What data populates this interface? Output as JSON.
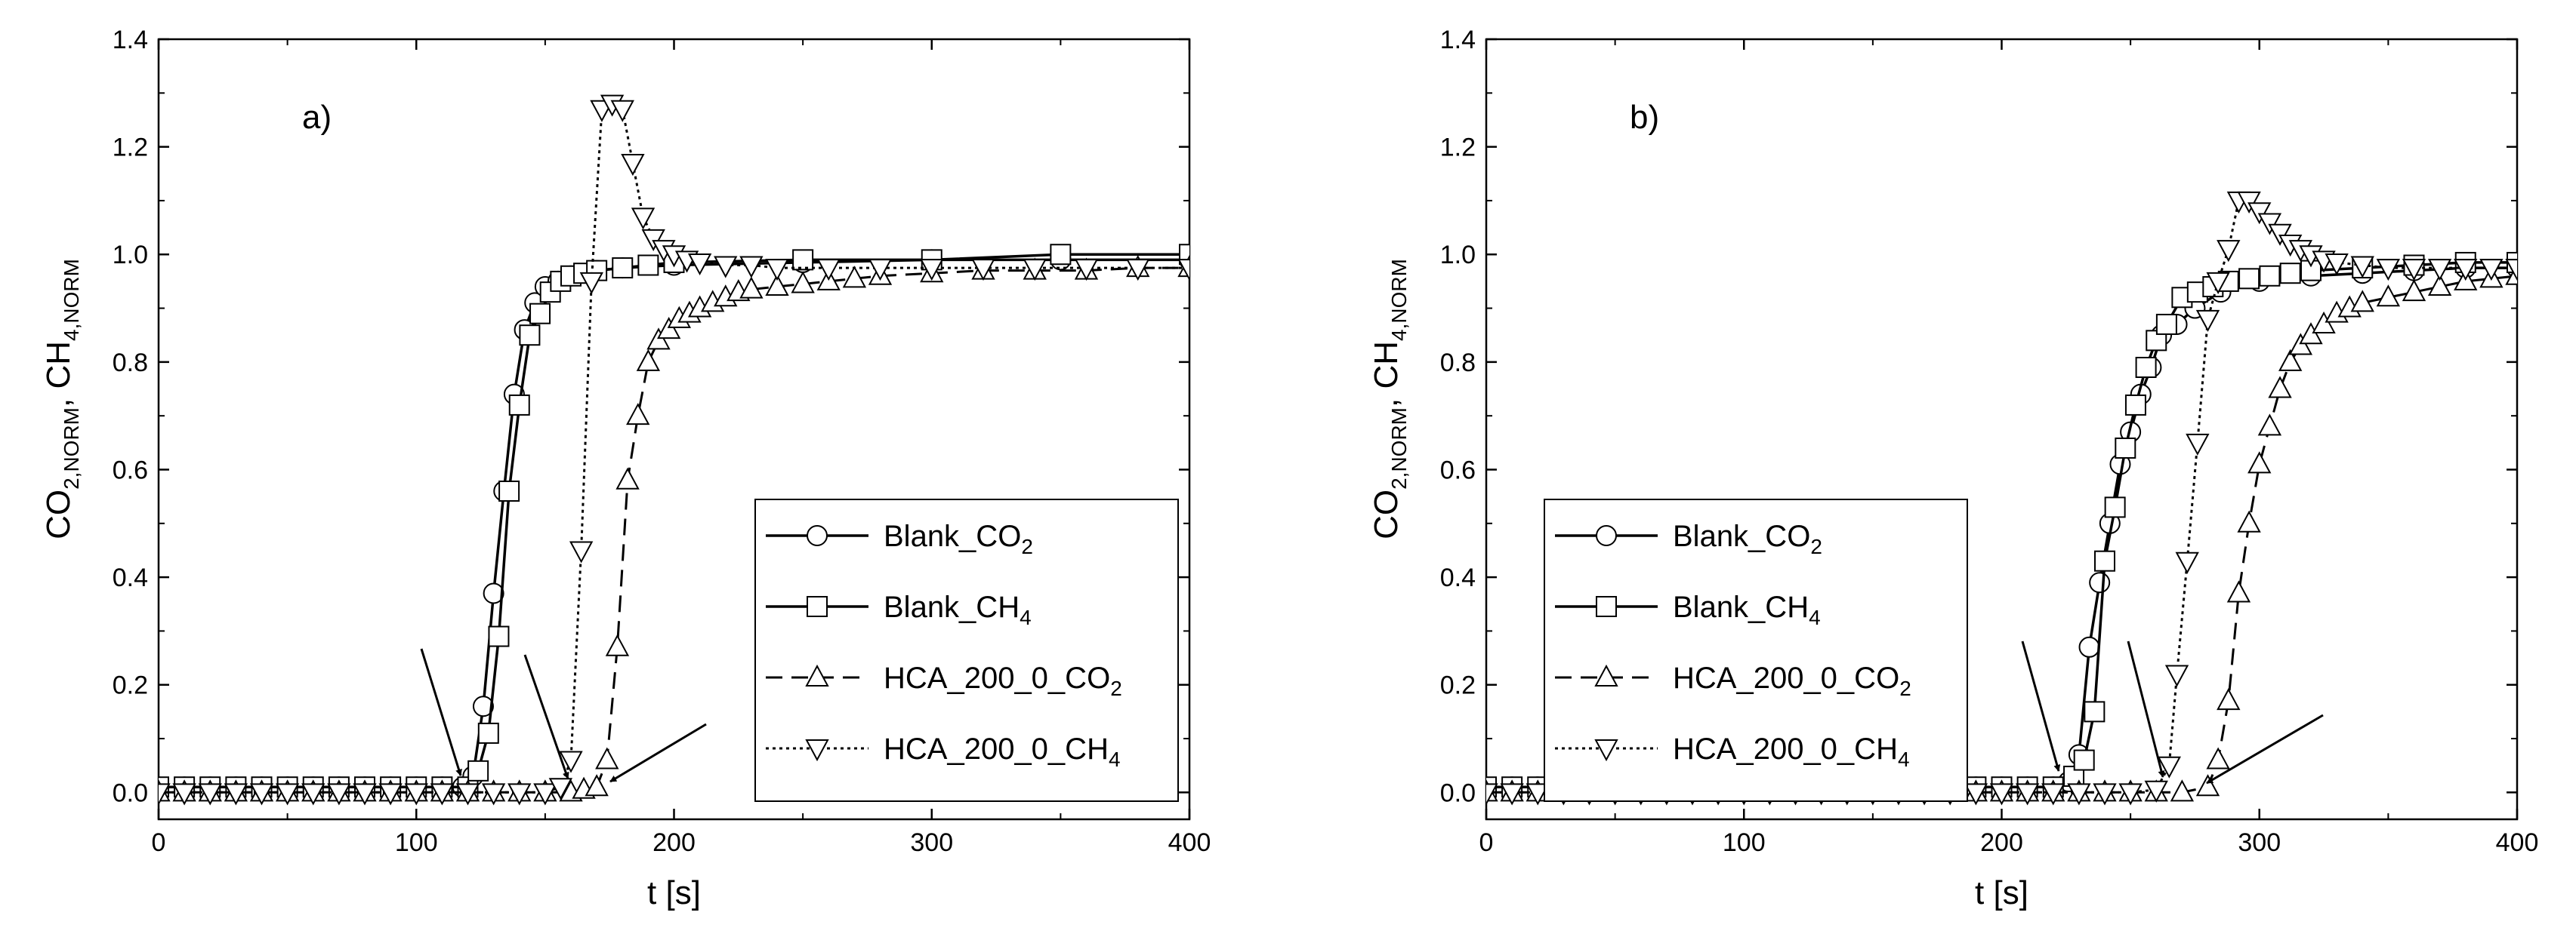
{
  "chart_data": [
    {
      "type": "line",
      "panel_label": "a)",
      "xlabel": "t [s]",
      "ylabel": "CO2,NORM, CH4,NORM",
      "ylabel_parts": [
        "CO",
        "2,NORM",
        ", CH",
        "4,NORM"
      ],
      "xlim": [
        0,
        400
      ],
      "ylim": [
        -0.05,
        1.4
      ],
      "xticks": [
        "0",
        "100",
        "200",
        "300",
        "400"
      ],
      "yticks": [
        "0.0",
        "0.2",
        "0.4",
        "0.6",
        "0.8",
        "1.0",
        "1.2",
        "1.4"
      ],
      "grid": false,
      "legend_position": "bottom-right",
      "series": [
        {
          "name": "Blank_CO2",
          "name_main": "Blank_CO",
          "name_sub": "2",
          "marker": "circle",
          "line": "solid",
          "x": [
            0,
            10,
            20,
            30,
            40,
            50,
            60,
            70,
            80,
            90,
            100,
            110,
            118,
            122,
            126,
            130,
            134,
            138,
            142,
            146,
            150,
            155,
            160,
            170,
            180,
            200,
            250,
            300,
            350,
            400
          ],
          "y": [
            0.01,
            0.01,
            0.01,
            0.01,
            0.01,
            0.01,
            0.01,
            0.01,
            0.01,
            0.01,
            0.01,
            0.01,
            0.01,
            0.03,
            0.16,
            0.37,
            0.56,
            0.74,
            0.86,
            0.91,
            0.94,
            0.95,
            0.96,
            0.97,
            0.975,
            0.98,
            0.985,
            0.99,
            0.99,
            0.99
          ]
        },
        {
          "name": "Blank_CH4",
          "name_main": "Blank_CH",
          "name_sub": "4",
          "marker": "square",
          "line": "solid",
          "x": [
            0,
            10,
            20,
            30,
            40,
            50,
            60,
            70,
            80,
            90,
            100,
            110,
            120,
            124,
            128,
            132,
            136,
            140,
            144,
            148,
            152,
            156,
            160,
            165,
            170,
            180,
            190,
            200,
            250,
            300,
            350,
            400
          ],
          "y": [
            0.01,
            0.01,
            0.01,
            0.01,
            0.01,
            0.01,
            0.01,
            0.01,
            0.01,
            0.01,
            0.01,
            0.01,
            0.01,
            0.04,
            0.11,
            0.29,
            0.56,
            0.72,
            0.85,
            0.89,
            0.93,
            0.95,
            0.96,
            0.965,
            0.97,
            0.975,
            0.98,
            0.985,
            0.99,
            0.99,
            1.0,
            1.0
          ]
        },
        {
          "name": "HCA_200_0_CO2",
          "name_main": "HCA_200_0_CO",
          "name_sub": "2",
          "marker": "triangle-up",
          "line": "dashed",
          "x": [
            0,
            10,
            20,
            30,
            40,
            50,
            60,
            70,
            80,
            90,
            100,
            110,
            120,
            130,
            140,
            150,
            160,
            165,
            170,
            174,
            178,
            182,
            186,
            190,
            194,
            198,
            202,
            206,
            210,
            215,
            220,
            225,
            230,
            240,
            250,
            260,
            270,
            280,
            300,
            320,
            340,
            360,
            380,
            400
          ],
          "y": [
            0,
            0,
            0,
            0,
            0,
            0,
            0,
            0,
            0,
            0,
            0,
            0,
            0,
            0,
            0,
            0,
            0,
            0.005,
            0.01,
            0.06,
            0.27,
            0.58,
            0.7,
            0.8,
            0.84,
            0.86,
            0.88,
            0.89,
            0.9,
            0.91,
            0.92,
            0.93,
            0.935,
            0.94,
            0.945,
            0.95,
            0.955,
            0.96,
            0.965,
            0.97,
            0.97,
            0.97,
            0.975,
            0.975
          ]
        },
        {
          "name": "HCA_200_0_CH4",
          "name_main": "HCA_200_0_CH",
          "name_sub": "4",
          "marker": "triangle-down",
          "line": "dotted",
          "x": [
            0,
            10,
            20,
            30,
            40,
            50,
            60,
            70,
            80,
            90,
            100,
            110,
            120,
            130,
            140,
            150,
            156,
            160,
            164,
            168,
            172,
            176,
            180,
            184,
            188,
            192,
            196,
            200,
            205,
            210,
            220,
            230,
            240,
            260,
            280,
            300,
            320,
            340,
            360,
            380,
            400
          ],
          "y": [
            0,
            0,
            0,
            0,
            0,
            0,
            0,
            0,
            0,
            0,
            0,
            0,
            0,
            0,
            0,
            0,
            0.01,
            0.06,
            0.45,
            0.95,
            1.27,
            1.28,
            1.27,
            1.17,
            1.07,
            1.03,
            1.01,
            1.0,
            0.99,
            0.985,
            0.98,
            0.98,
            0.975,
            0.975,
            0.975,
            0.975,
            0.975,
            0.975,
            0.975,
            0.975,
            0.975
          ]
        }
      ],
      "annotations": "three arrows pointing at curve onsets"
    },
    {
      "type": "line",
      "panel_label": "b)",
      "xlabel": "t [s]",
      "ylabel": "CO2,NORM, CH4,NORM",
      "ylabel_parts": [
        "CO",
        "2,NORM",
        ", CH",
        "4,NORM"
      ],
      "xlim": [
        0,
        400
      ],
      "ylim": [
        -0.05,
        1.4
      ],
      "xticks": [
        "0",
        "100",
        "200",
        "300",
        "400"
      ],
      "yticks": [
        "0.0",
        "0.2",
        "0.4",
        "0.6",
        "0.8",
        "1.0",
        "1.2",
        "1.4"
      ],
      "grid": false,
      "legend_position": "bottom-left",
      "series": [
        {
          "name": "Blank_CO2",
          "name_main": "Blank_CO",
          "name_sub": "2",
          "marker": "circle",
          "line": "solid",
          "x": [
            0,
            10,
            20,
            30,
            40,
            50,
            60,
            70,
            80,
            90,
            100,
            110,
            120,
            130,
            140,
            150,
            160,
            170,
            180,
            190,
            200,
            210,
            220,
            226,
            230,
            234,
            238,
            242,
            246,
            250,
            254,
            258,
            262,
            268,
            275,
            285,
            300,
            320,
            340,
            360,
            380,
            400
          ],
          "y": [
            0.01,
            0.01,
            0.01,
            0.01,
            0.01,
            0.01,
            0.01,
            0.01,
            0.01,
            0.01,
            0.01,
            0.01,
            0.01,
            0.01,
            0.01,
            0.01,
            0.01,
            0.01,
            0.01,
            0.01,
            0.01,
            0.01,
            0.01,
            0.02,
            0.07,
            0.27,
            0.39,
            0.5,
            0.61,
            0.67,
            0.74,
            0.79,
            0.85,
            0.87,
            0.9,
            0.93,
            0.95,
            0.96,
            0.965,
            0.97,
            0.975,
            0.975
          ]
        },
        {
          "name": "Blank_CH4",
          "name_main": "Blank_CH",
          "name_sub": "4",
          "marker": "square",
          "line": "solid",
          "x": [
            0,
            10,
            20,
            30,
            40,
            50,
            60,
            70,
            80,
            90,
            100,
            110,
            120,
            130,
            140,
            150,
            160,
            170,
            180,
            190,
            200,
            210,
            220,
            228,
            232,
            236,
            240,
            244,
            248,
            252,
            256,
            260,
            264,
            270,
            276,
            282,
            288,
            296,
            304,
            312,
            320,
            340,
            360,
            380,
            400
          ],
          "y": [
            0.01,
            0.01,
            0.01,
            0.01,
            0.01,
            0.01,
            0.01,
            0.01,
            0.01,
            0.01,
            0.01,
            0.01,
            0.01,
            0.01,
            0.01,
            0.01,
            0.01,
            0.01,
            0.01,
            0.01,
            0.01,
            0.01,
            0.01,
            0.03,
            0.06,
            0.15,
            0.43,
            0.53,
            0.64,
            0.72,
            0.79,
            0.84,
            0.87,
            0.92,
            0.93,
            0.94,
            0.95,
            0.955,
            0.96,
            0.965,
            0.97,
            0.975,
            0.98,
            0.985,
            0.985
          ]
        },
        {
          "name": "HCA_200_0_CO2",
          "name_main": "HCA_200_0_CO",
          "name_sub": "2",
          "marker": "triangle-up",
          "line": "dashed",
          "x": [
            0,
            10,
            20,
            30,
            40,
            50,
            60,
            70,
            80,
            90,
            100,
            110,
            120,
            130,
            140,
            150,
            160,
            170,
            180,
            190,
            200,
            210,
            220,
            230,
            240,
            250,
            260,
            270,
            280,
            284,
            288,
            292,
            296,
            300,
            304,
            308,
            312,
            316,
            320,
            325,
            330,
            335,
            340,
            350,
            360,
            370,
            380,
            390,
            400
          ],
          "y": [
            0,
            0,
            0,
            0,
            0,
            0,
            0,
            0,
            0,
            0,
            0,
            0,
            0,
            0,
            0,
            0,
            0,
            0,
            0,
            0,
            0,
            0,
            0,
            0,
            0,
            0,
            0,
            0,
            0.01,
            0.06,
            0.17,
            0.37,
            0.5,
            0.61,
            0.68,
            0.75,
            0.8,
            0.83,
            0.85,
            0.87,
            0.89,
            0.9,
            0.91,
            0.92,
            0.93,
            0.94,
            0.95,
            0.955,
            0.96
          ]
        },
        {
          "name": "HCA_200_0_CH4",
          "name_main": "HCA_200_0_CH",
          "name_sub": "4",
          "marker": "triangle-down",
          "line": "dotted",
          "x": [
            0,
            10,
            20,
            30,
            40,
            50,
            60,
            70,
            80,
            90,
            100,
            110,
            120,
            130,
            140,
            150,
            160,
            170,
            180,
            190,
            200,
            210,
            220,
            230,
            240,
            250,
            260,
            265,
            268,
            272,
            276,
            280,
            284,
            288,
            292,
            296,
            300,
            304,
            308,
            312,
            316,
            320,
            325,
            330,
            340,
            350,
            360,
            370,
            380,
            390,
            400
          ],
          "y": [
            0,
            0,
            0,
            0,
            0,
            0,
            0,
            0,
            0,
            0,
            0,
            0,
            0,
            0,
            0,
            0,
            0,
            0,
            0,
            0,
            0,
            0,
            0,
            0,
            0,
            0,
            0.005,
            0.05,
            0.22,
            0.43,
            0.65,
            0.88,
            0.95,
            1.01,
            1.1,
            1.1,
            1.08,
            1.06,
            1.04,
            1.02,
            1.01,
            1.0,
            0.99,
            0.985,
            0.98,
            0.975,
            0.975,
            0.975,
            0.975,
            0.975,
            0.975
          ]
        }
      ],
      "annotations": "three arrows pointing at curve onsets"
    }
  ]
}
